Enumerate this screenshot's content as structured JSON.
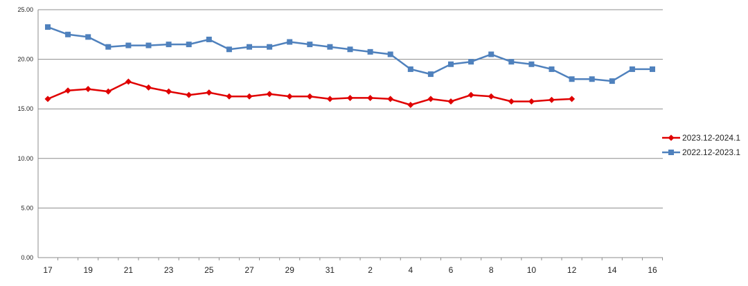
{
  "chart_data": {
    "type": "line",
    "title": "",
    "xlabel": "",
    "ylabel": "",
    "ylim": [
      0,
      25
    ],
    "y_ticks": [
      "0.00",
      "5.00",
      "10.00",
      "15.00",
      "20.00",
      "25.00"
    ],
    "x": [
      "17",
      "18",
      "19",
      "20",
      "21",
      "22",
      "23",
      "24",
      "25",
      "26",
      "27",
      "28",
      "29",
      "30",
      "31",
      "1",
      "2",
      "3",
      "4",
      "5",
      "6",
      "7",
      "8",
      "9",
      "10",
      "11",
      "12",
      "13",
      "14",
      "15",
      "16"
    ],
    "x_tick_labels": [
      "17",
      "19",
      "21",
      "23",
      "25",
      "27",
      "29",
      "31",
      "2",
      "4",
      "6",
      "8",
      "10",
      "12",
      "14",
      "16"
    ],
    "grid": true,
    "legend_position": "right",
    "series": [
      {
        "name": "2023.12-2024.1",
        "color": "#e00000",
        "marker": "diamond",
        "values": [
          16.0,
          16.85,
          17.0,
          16.75,
          17.75,
          17.15,
          16.75,
          16.4,
          16.65,
          16.25,
          16.25,
          16.5,
          16.25,
          16.25,
          16.0,
          16.1,
          16.1,
          16.0,
          15.4,
          16.0,
          15.75,
          16.4,
          16.25,
          15.75,
          15.75,
          15.9,
          16.0,
          null,
          null,
          null,
          null
        ]
      },
      {
        "name": "2022.12-2023.1",
        "color": "#4f81bd",
        "marker": "square",
        "values": [
          23.25,
          22.5,
          22.25,
          21.25,
          21.4,
          21.4,
          21.5,
          21.5,
          22.0,
          21.0,
          21.25,
          21.25,
          21.75,
          21.5,
          21.25,
          21.0,
          20.75,
          20.5,
          19.0,
          18.5,
          19.5,
          19.75,
          20.5,
          19.75,
          19.5,
          19.0,
          18.0,
          18.0,
          17.8,
          19.0,
          19.0
        ]
      }
    ]
  }
}
